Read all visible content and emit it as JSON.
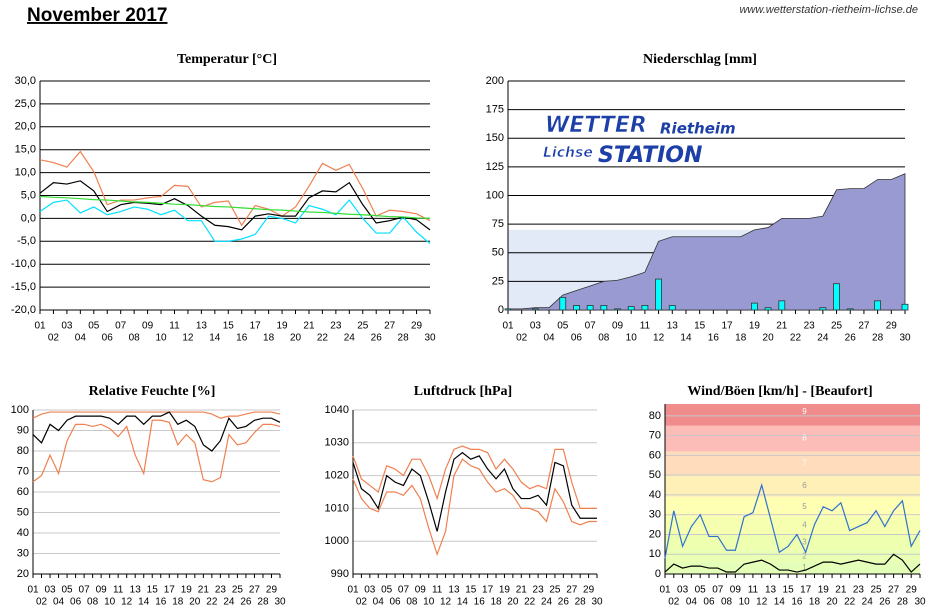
{
  "header": {
    "title": "November 2017",
    "url": "www.wetterstation-rietheim-lichse.de"
  },
  "logo": [
    "WETTER",
    "Rietheim",
    "Lichse",
    "STATION"
  ],
  "chart_data": [
    {
      "type": "line",
      "title": "Temperatur [°C]",
      "grid_color": "#000000",
      "categories": [
        "01",
        "02",
        "03",
        "04",
        "05",
        "06",
        "07",
        "08",
        "09",
        "10",
        "11",
        "12",
        "13",
        "14",
        "15",
        "16",
        "17",
        "18",
        "19",
        "20",
        "21",
        "22",
        "23",
        "24",
        "25",
        "26",
        "27",
        "28",
        "29",
        "30"
      ],
      "ylim": [
        -20,
        30
      ],
      "yticks": [
        {
          "value": -20,
          "label": "-20,0"
        },
        {
          "value": -15,
          "label": "-15,0"
        },
        {
          "value": -10,
          "label": "-10,0"
        },
        {
          "value": -5,
          "label": "-5,0"
        },
        {
          "value": 0,
          "label": "0,0"
        },
        {
          "value": 5,
          "label": "5,0"
        },
        {
          "value": 10,
          "label": "10,0"
        },
        {
          "value": 15,
          "label": "15,0"
        },
        {
          "value": 20,
          "label": "20,0"
        },
        {
          "value": 25,
          "label": "25,0"
        },
        {
          "value": 30,
          "label": "30,0"
        }
      ],
      "series": [
        {
          "color": "#f08050",
          "values": [
            12.8,
            12.2,
            11.2,
            14.6,
            10.2,
            3.0,
            4.0,
            4.0,
            4.5,
            4.8,
            7.2,
            7.0,
            2.5,
            3.5,
            3.8,
            -1.5,
            2.8,
            2.0,
            0.5,
            2.5,
            7.0,
            12.0,
            10.5,
            11.8,
            6.5,
            0.5,
            1.8,
            1.5,
            1.0,
            -0.5
          ]
        },
        {
          "color": "#00e0ff",
          "values": [
            1.5,
            3.5,
            4.0,
            1.2,
            2.5,
            0.8,
            1.5,
            2.5,
            2.0,
            0.8,
            1.8,
            -0.5,
            -0.5,
            -5.0,
            -5.0,
            -4.5,
            -3.5,
            0.5,
            0.0,
            -1.0,
            2.8,
            2.0,
            0.8,
            4.0,
            0.0,
            -3.2,
            -3.2,
            0.3,
            -3.0,
            -5.5
          ]
        },
        {
          "color": "#000000",
          "values": [
            5.5,
            7.8,
            7.5,
            8.2,
            6.0,
            1.5,
            3.0,
            3.5,
            3.3,
            3.0,
            4.3,
            2.8,
            0.5,
            -1.5,
            -1.8,
            -2.5,
            0.5,
            1.0,
            0.5,
            0.5,
            4.5,
            6.0,
            5.8,
            7.8,
            3.0,
            -1.0,
            -0.5,
            0.3,
            -0.3,
            -2.5
          ]
        },
        {
          "color": "#33dd33",
          "values": [
            4.8,
            4.6,
            4.5,
            4.3,
            4.1,
            4.0,
            3.8,
            3.6,
            3.5,
            3.3,
            3.1,
            3.0,
            2.8,
            2.6,
            2.5,
            2.3,
            2.1,
            1.9,
            1.8,
            1.6,
            1.4,
            1.3,
            1.1,
            0.9,
            0.8,
            0.6,
            0.4,
            0.3,
            0.1,
            0.0
          ]
        }
      ]
    },
    {
      "type": "bar",
      "title": "Niederschlag [mm]",
      "grid_color": "#000000",
      "reference_band": 70,
      "reference_color": "#e2eaf8",
      "area_color": "#9a9ad2",
      "categories": [
        "01",
        "02",
        "03",
        "04",
        "05",
        "06",
        "07",
        "08",
        "09",
        "10",
        "11",
        "12",
        "13",
        "14",
        "15",
        "16",
        "17",
        "18",
        "19",
        "20",
        "21",
        "22",
        "23",
        "24",
        "25",
        "26",
        "27",
        "28",
        "29",
        "30"
      ],
      "ylim": [
        0,
        200
      ],
      "yticks": [
        0,
        25,
        50,
        75,
        100,
        125,
        150,
        175,
        200
      ],
      "series": [
        {
          "color": "#00ffff",
          "values": [
            1,
            0,
            1,
            0,
            11,
            4,
            4,
            4,
            1,
            3,
            4,
            27,
            4,
            0,
            0,
            0,
            0,
            0,
            6,
            2,
            8,
            0,
            0,
            2,
            23,
            1,
            0,
            8,
            0,
            5
          ]
        }
      ]
    },
    {
      "type": "line",
      "title": "Relative Feuchte [%]",
      "grid_color": "#c8c8c8",
      "categories": [
        "01",
        "02",
        "03",
        "04",
        "05",
        "06",
        "07",
        "08",
        "09",
        "10",
        "11",
        "12",
        "13",
        "14",
        "15",
        "16",
        "17",
        "18",
        "19",
        "20",
        "21",
        "22",
        "23",
        "24",
        "25",
        "26",
        "27",
        "28",
        "29",
        "30"
      ],
      "ylim": [
        20,
        100
      ],
      "yticks": [
        20,
        30,
        40,
        50,
        60,
        70,
        80,
        90,
        100
      ],
      "series": [
        {
          "color": "#f08050",
          "values": [
            96,
            98,
            99,
            99,
            99,
            99,
            99,
            99,
            99,
            99,
            99,
            99,
            99,
            99,
            99,
            99,
            99,
            99,
            99,
            99,
            99,
            98,
            96,
            97,
            97,
            98,
            99,
            99,
            99,
            98
          ]
        },
        {
          "color": "#f08050",
          "values": [
            65,
            68,
            78,
            69,
            85,
            93,
            93,
            92,
            93,
            91,
            87,
            92,
            78,
            69,
            95,
            95,
            94,
            83,
            88,
            84,
            66,
            65,
            67,
            88,
            83,
            84,
            89,
            93,
            93,
            92
          ]
        },
        {
          "color": "#000000",
          "values": [
            88,
            84,
            93,
            90,
            95,
            97,
            97,
            97,
            97,
            96,
            93,
            97,
            97,
            93,
            97,
            97,
            99,
            93,
            95,
            92,
            83,
            80,
            85,
            96,
            91,
            92,
            95,
            96,
            96,
            94
          ]
        }
      ]
    },
    {
      "type": "line",
      "title": "Luftdruck [hPa]",
      "grid_color": "#c8c8c8",
      "categories": [
        "01",
        "02",
        "03",
        "04",
        "05",
        "06",
        "07",
        "08",
        "09",
        "10",
        "11",
        "12",
        "13",
        "14",
        "15",
        "16",
        "17",
        "18",
        "19",
        "20",
        "21",
        "22",
        "23",
        "24",
        "25",
        "26",
        "27",
        "28",
        "29",
        "30"
      ],
      "ylim": [
        990,
        1040
      ],
      "yticks": [
        990,
        1000,
        1010,
        1020,
        1030,
        1040
      ],
      "series": [
        {
          "color": "#f08050",
          "values": [
            1026,
            1019,
            1017,
            1015,
            1023,
            1022,
            1020,
            1025,
            1025,
            1020,
            1013,
            1022,
            1028,
            1029,
            1028,
            1028,
            1027,
            1022,
            1025,
            1022,
            1018,
            1016,
            1017,
            1016,
            1028,
            1028,
            1018,
            1010,
            1010,
            1010
          ]
        },
        {
          "color": "#f08050",
          "values": [
            1019,
            1013,
            1010,
            1009,
            1015,
            1015,
            1014,
            1017,
            1013,
            1004,
            996,
            1003,
            1020,
            1025,
            1023,
            1022,
            1018,
            1015,
            1016,
            1014,
            1010,
            1010,
            1009,
            1006,
            1016,
            1012,
            1006,
            1005,
            1006,
            1006
          ]
        },
        {
          "color": "#000000",
          "values": [
            1024,
            1016,
            1014,
            1010,
            1020,
            1018,
            1017,
            1022,
            1020,
            1012,
            1003,
            1015,
            1025,
            1027,
            1025,
            1026,
            1022,
            1019,
            1022,
            1016,
            1013,
            1013,
            1014,
            1011,
            1024,
            1023,
            1011,
            1007,
            1007,
            1007
          ]
        }
      ]
    },
    {
      "type": "line",
      "title": "Wind/Böen [km/h] - [Beaufort]",
      "grid_color": "#c8c8c8",
      "categories": [
        "01",
        "02",
        "03",
        "04",
        "05",
        "06",
        "07",
        "08",
        "09",
        "10",
        "11",
        "12",
        "13",
        "14",
        "15",
        "16",
        "17",
        "18",
        "19",
        "20",
        "21",
        "22",
        "23",
        "24",
        "25",
        "26",
        "27",
        "28",
        "29",
        "30"
      ],
      "ylim": [
        0,
        86
      ],
      "yticks": [
        0,
        10,
        20,
        30,
        40,
        50,
        60,
        70,
        80
      ],
      "bands": [
        {
          "label": "1",
          "from": 0,
          "to": 6,
          "color": "#e4ffb8"
        },
        {
          "label": "2",
          "from": 6,
          "to": 12,
          "color": "#e8ffb4"
        },
        {
          "label": "3",
          "from": 12,
          "to": 20,
          "color": "#eeffb0"
        },
        {
          "label": "4",
          "from": 20,
          "to": 29,
          "color": "#f6ffb0"
        },
        {
          "label": "5",
          "from": 29,
          "to": 39,
          "color": "#ffffb4"
        },
        {
          "label": "6",
          "from": 39,
          "to": 50,
          "color": "#fff0b8"
        },
        {
          "label": "7",
          "from": 50,
          "to": 62,
          "color": "#ffdcbc"
        },
        {
          "label": "8",
          "from": 62,
          "to": 75,
          "color": "#fcbcb8"
        },
        {
          "label": "9",
          "from": 75,
          "to": 89,
          "color": "#f08c8c"
        }
      ],
      "series": [
        {
          "color": "#3070d0",
          "values": [
            8,
            32,
            14,
            24,
            30,
            19,
            19,
            12,
            12,
            29,
            31,
            45,
            28,
            11,
            14,
            20,
            11,
            25,
            34,
            32,
            36,
            22,
            24,
            26,
            32,
            24,
            32,
            37,
            14,
            22
          ]
        },
        {
          "color": "#000000",
          "values": [
            1,
            5,
            3,
            4,
            4,
            3,
            3,
            1,
            1,
            5,
            6,
            7,
            5,
            2,
            2,
            1,
            2,
            4,
            6,
            6,
            5,
            6,
            7,
            6,
            5,
            5,
            10,
            7,
            1,
            5
          ]
        }
      ]
    }
  ]
}
